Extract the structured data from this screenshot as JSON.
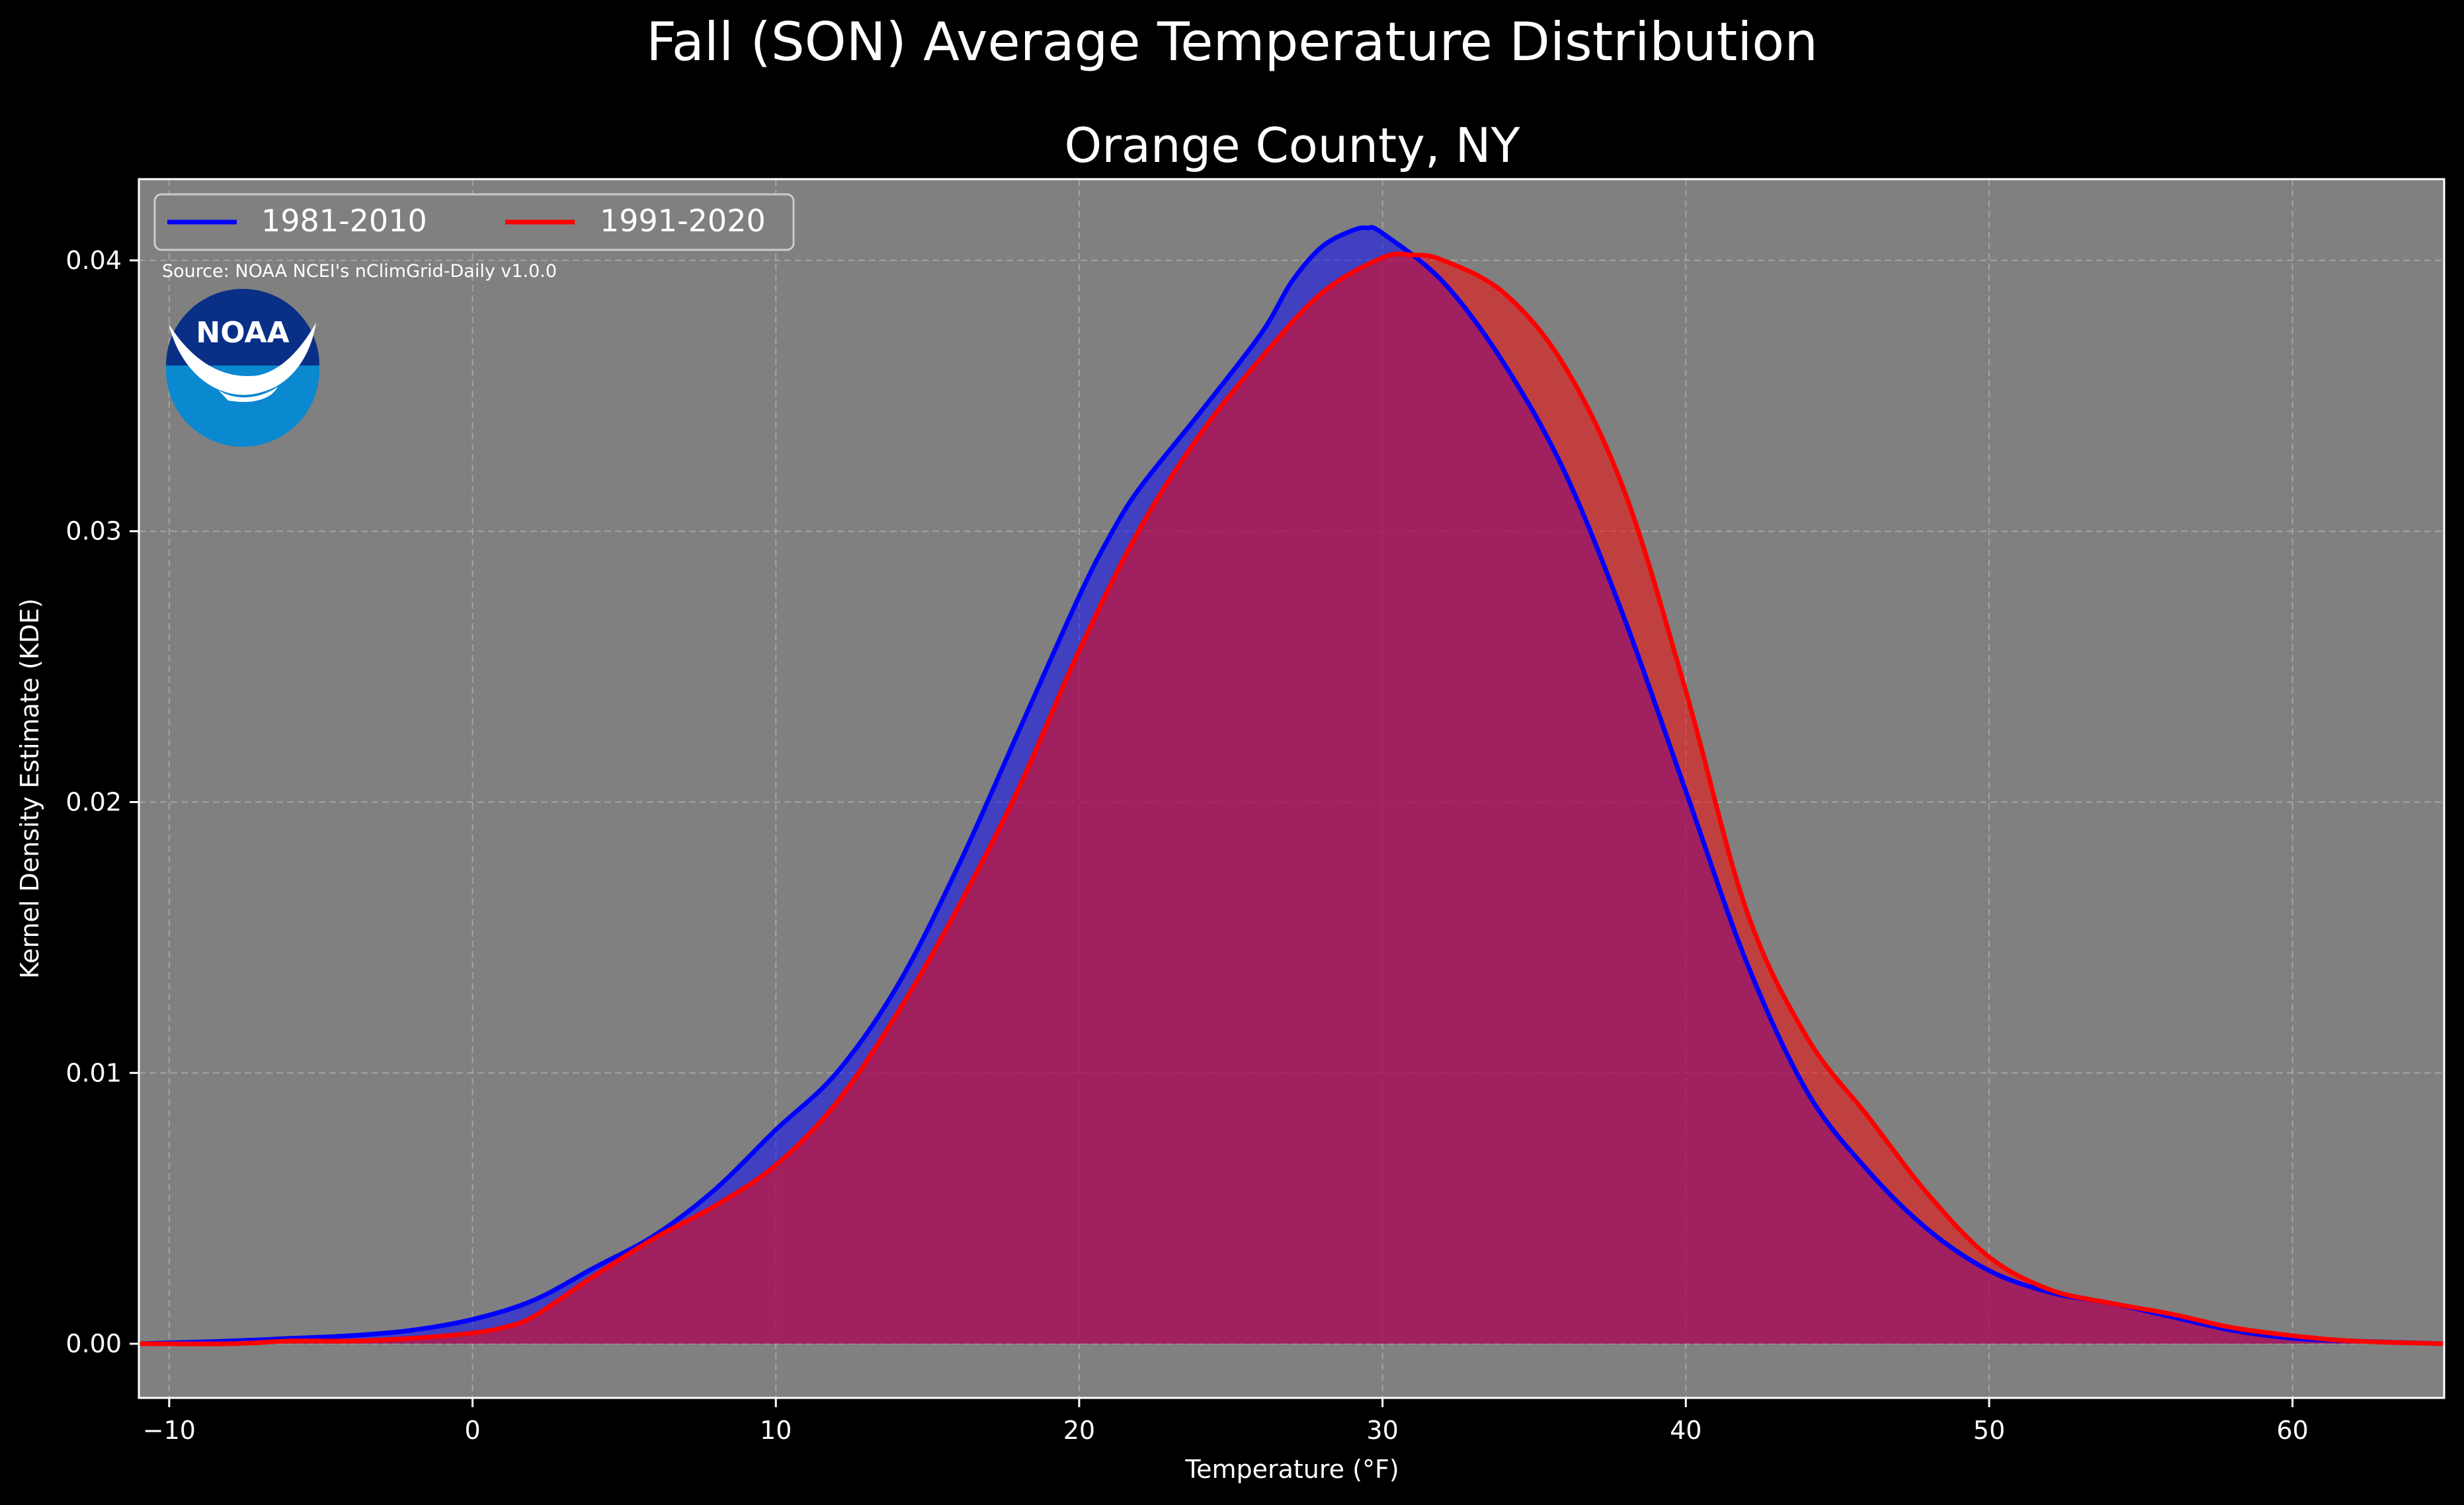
{
  "page": {
    "title": "Fall (SON) Average Temperature Distribution"
  },
  "chart_data": {
    "type": "area",
    "title": "Orange County, NY",
    "xlabel": "Temperature (°F)",
    "ylabel": "Kernel Density Estimate (KDE)",
    "xlim": [
      -11,
      65
    ],
    "ylim": [
      -0.002,
      0.043
    ],
    "xticks": [
      -10,
      0,
      10,
      20,
      30,
      40,
      50,
      60
    ],
    "xtick_labels": [
      "−10",
      "0",
      "10",
      "20",
      "30",
      "40",
      "50",
      "60"
    ],
    "yticks": [
      0,
      0.01,
      0.02,
      0.03,
      0.04
    ],
    "ytick_labels": [
      "0.00",
      "0.01",
      "0.02",
      "0.03",
      "0.04"
    ],
    "grid": true,
    "legend_placement": "top-left",
    "legend_columns": 2,
    "source_note": "Source: NOAA NCEI's nClimGrid-Daily v1.0.0",
    "logo": {
      "name": "noaa-logo",
      "text": "NOAA"
    },
    "colors": {
      "background": "#000000",
      "plot_bg": "#808080",
      "series_1": "#0000ff",
      "series_2": "#ff0000",
      "grid": "#b3b3b3",
      "logo_dark": "#0a2f86",
      "logo_light": "#0a88d0"
    },
    "series": [
      {
        "name": "1981-2010",
        "color": "#0000ff",
        "fill_opacity": 0.5,
        "x": [
          -11,
          -8,
          -6,
          -4,
          -2,
          0,
          2,
          4,
          6,
          8,
          10,
          12,
          14,
          16,
          18,
          20,
          21,
          22,
          24,
          26,
          27,
          28,
          29,
          29.5,
          30,
          32,
          34,
          36,
          38,
          40,
          42,
          44,
          46,
          48,
          50,
          52,
          54,
          56,
          58,
          60,
          62,
          65
        ],
        "y": [
          0,
          0.0001,
          0.0002,
          0.0003,
          0.0005,
          0.0009,
          0.0016,
          0.0028,
          0.004,
          0.0057,
          0.0079,
          0.01,
          0.0132,
          0.0176,
          0.0226,
          0.0276,
          0.0298,
          0.0316,
          0.0344,
          0.0373,
          0.0392,
          0.0405,
          0.0411,
          0.0412,
          0.041,
          0.0392,
          0.0362,
          0.0322,
          0.0267,
          0.0204,
          0.0141,
          0.0093,
          0.0064,
          0.0042,
          0.0027,
          0.0019,
          0.0015,
          0.001,
          0.0005,
          0.0002,
          0.0001,
          0
        ]
      },
      {
        "name": "1991-2020",
        "color": "#ff0000",
        "fill_opacity": 0.5,
        "x": [
          -11,
          -8,
          -6,
          -4,
          -2,
          0,
          1,
          2,
          4,
          6,
          8,
          10,
          12,
          14,
          16,
          18,
          20,
          22,
          24,
          26,
          28,
          30,
          31,
          32,
          34,
          36,
          38,
          40,
          42,
          44,
          46,
          48,
          50,
          52,
          54,
          56,
          58,
          60,
          62,
          65
        ],
        "y": [
          0,
          0,
          0.0001,
          0.0001,
          0.0002,
          0.0004,
          0.0006,
          0.001,
          0.0025,
          0.0039,
          0.0051,
          0.0066,
          0.0089,
          0.0122,
          0.0161,
          0.0205,
          0.0256,
          0.0301,
          0.0336,
          0.0364,
          0.0388,
          0.0401,
          0.0402,
          0.04,
          0.0388,
          0.0361,
          0.0314,
          0.0241,
          0.016,
          0.0113,
          0.0084,
          0.0055,
          0.0032,
          0.002,
          0.0015,
          0.0011,
          0.0006,
          0.0003,
          0.0001,
          0
        ]
      }
    ]
  }
}
